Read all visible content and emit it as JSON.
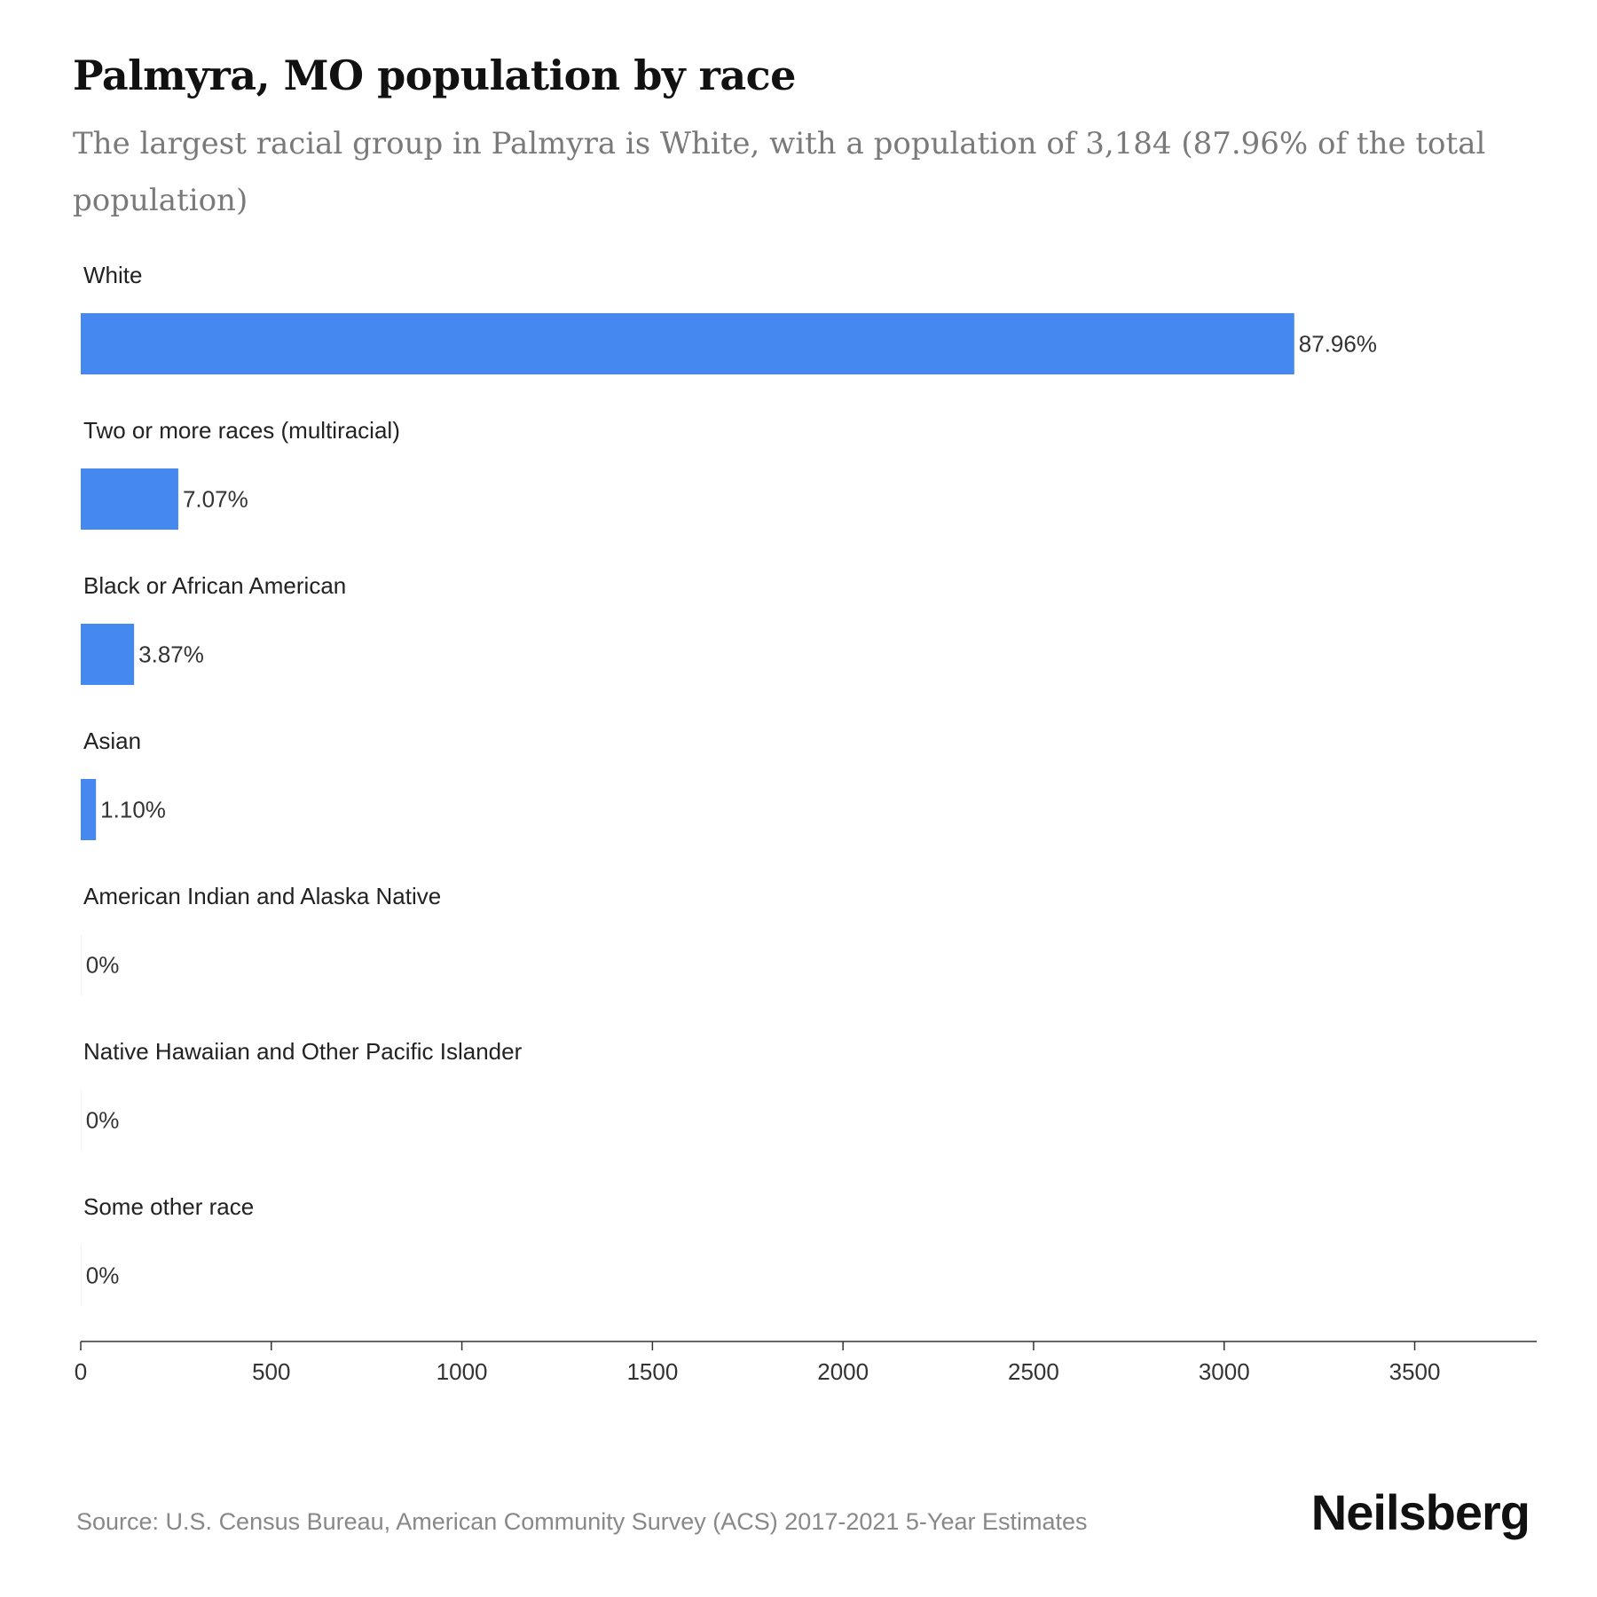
{
  "header": {
    "title": "Palmyra, MO population by race",
    "subtitle": "The largest racial group in Palmyra is White, with a population of 3,184 (87.96% of the total population)"
  },
  "footer": {
    "source": "Source: U.S. Census Bureau, American Community Survey (ACS) 2017-2021 5-Year Estimates",
    "brand": "Neilsberg"
  },
  "colors": {
    "bar": "#4589f0",
    "axis": "#333333"
  },
  "chart_data": {
    "type": "bar",
    "orientation": "horizontal",
    "categories": [
      "White",
      "Two or more races (multiracial)",
      "Black or African American",
      "Asian",
      "American Indian and Alaska Native",
      "Native Hawaiian and Other Pacific Islander",
      "Some other race"
    ],
    "values": [
      3184,
      256,
      140,
      40,
      0,
      0,
      0
    ],
    "data_labels": [
      "87.96%",
      "7.07%",
      "3.87%",
      "1.10%",
      "0%",
      "0%",
      "0%"
    ],
    "xlim": [
      0,
      3820
    ],
    "xticks": [
      0,
      500,
      1000,
      1500,
      2000,
      2500,
      3000,
      3500
    ],
    "xtick_labels": [
      "0",
      "500",
      "1000",
      "1500",
      "2000",
      "2500",
      "3000",
      "3500"
    ],
    "grid": false
  }
}
